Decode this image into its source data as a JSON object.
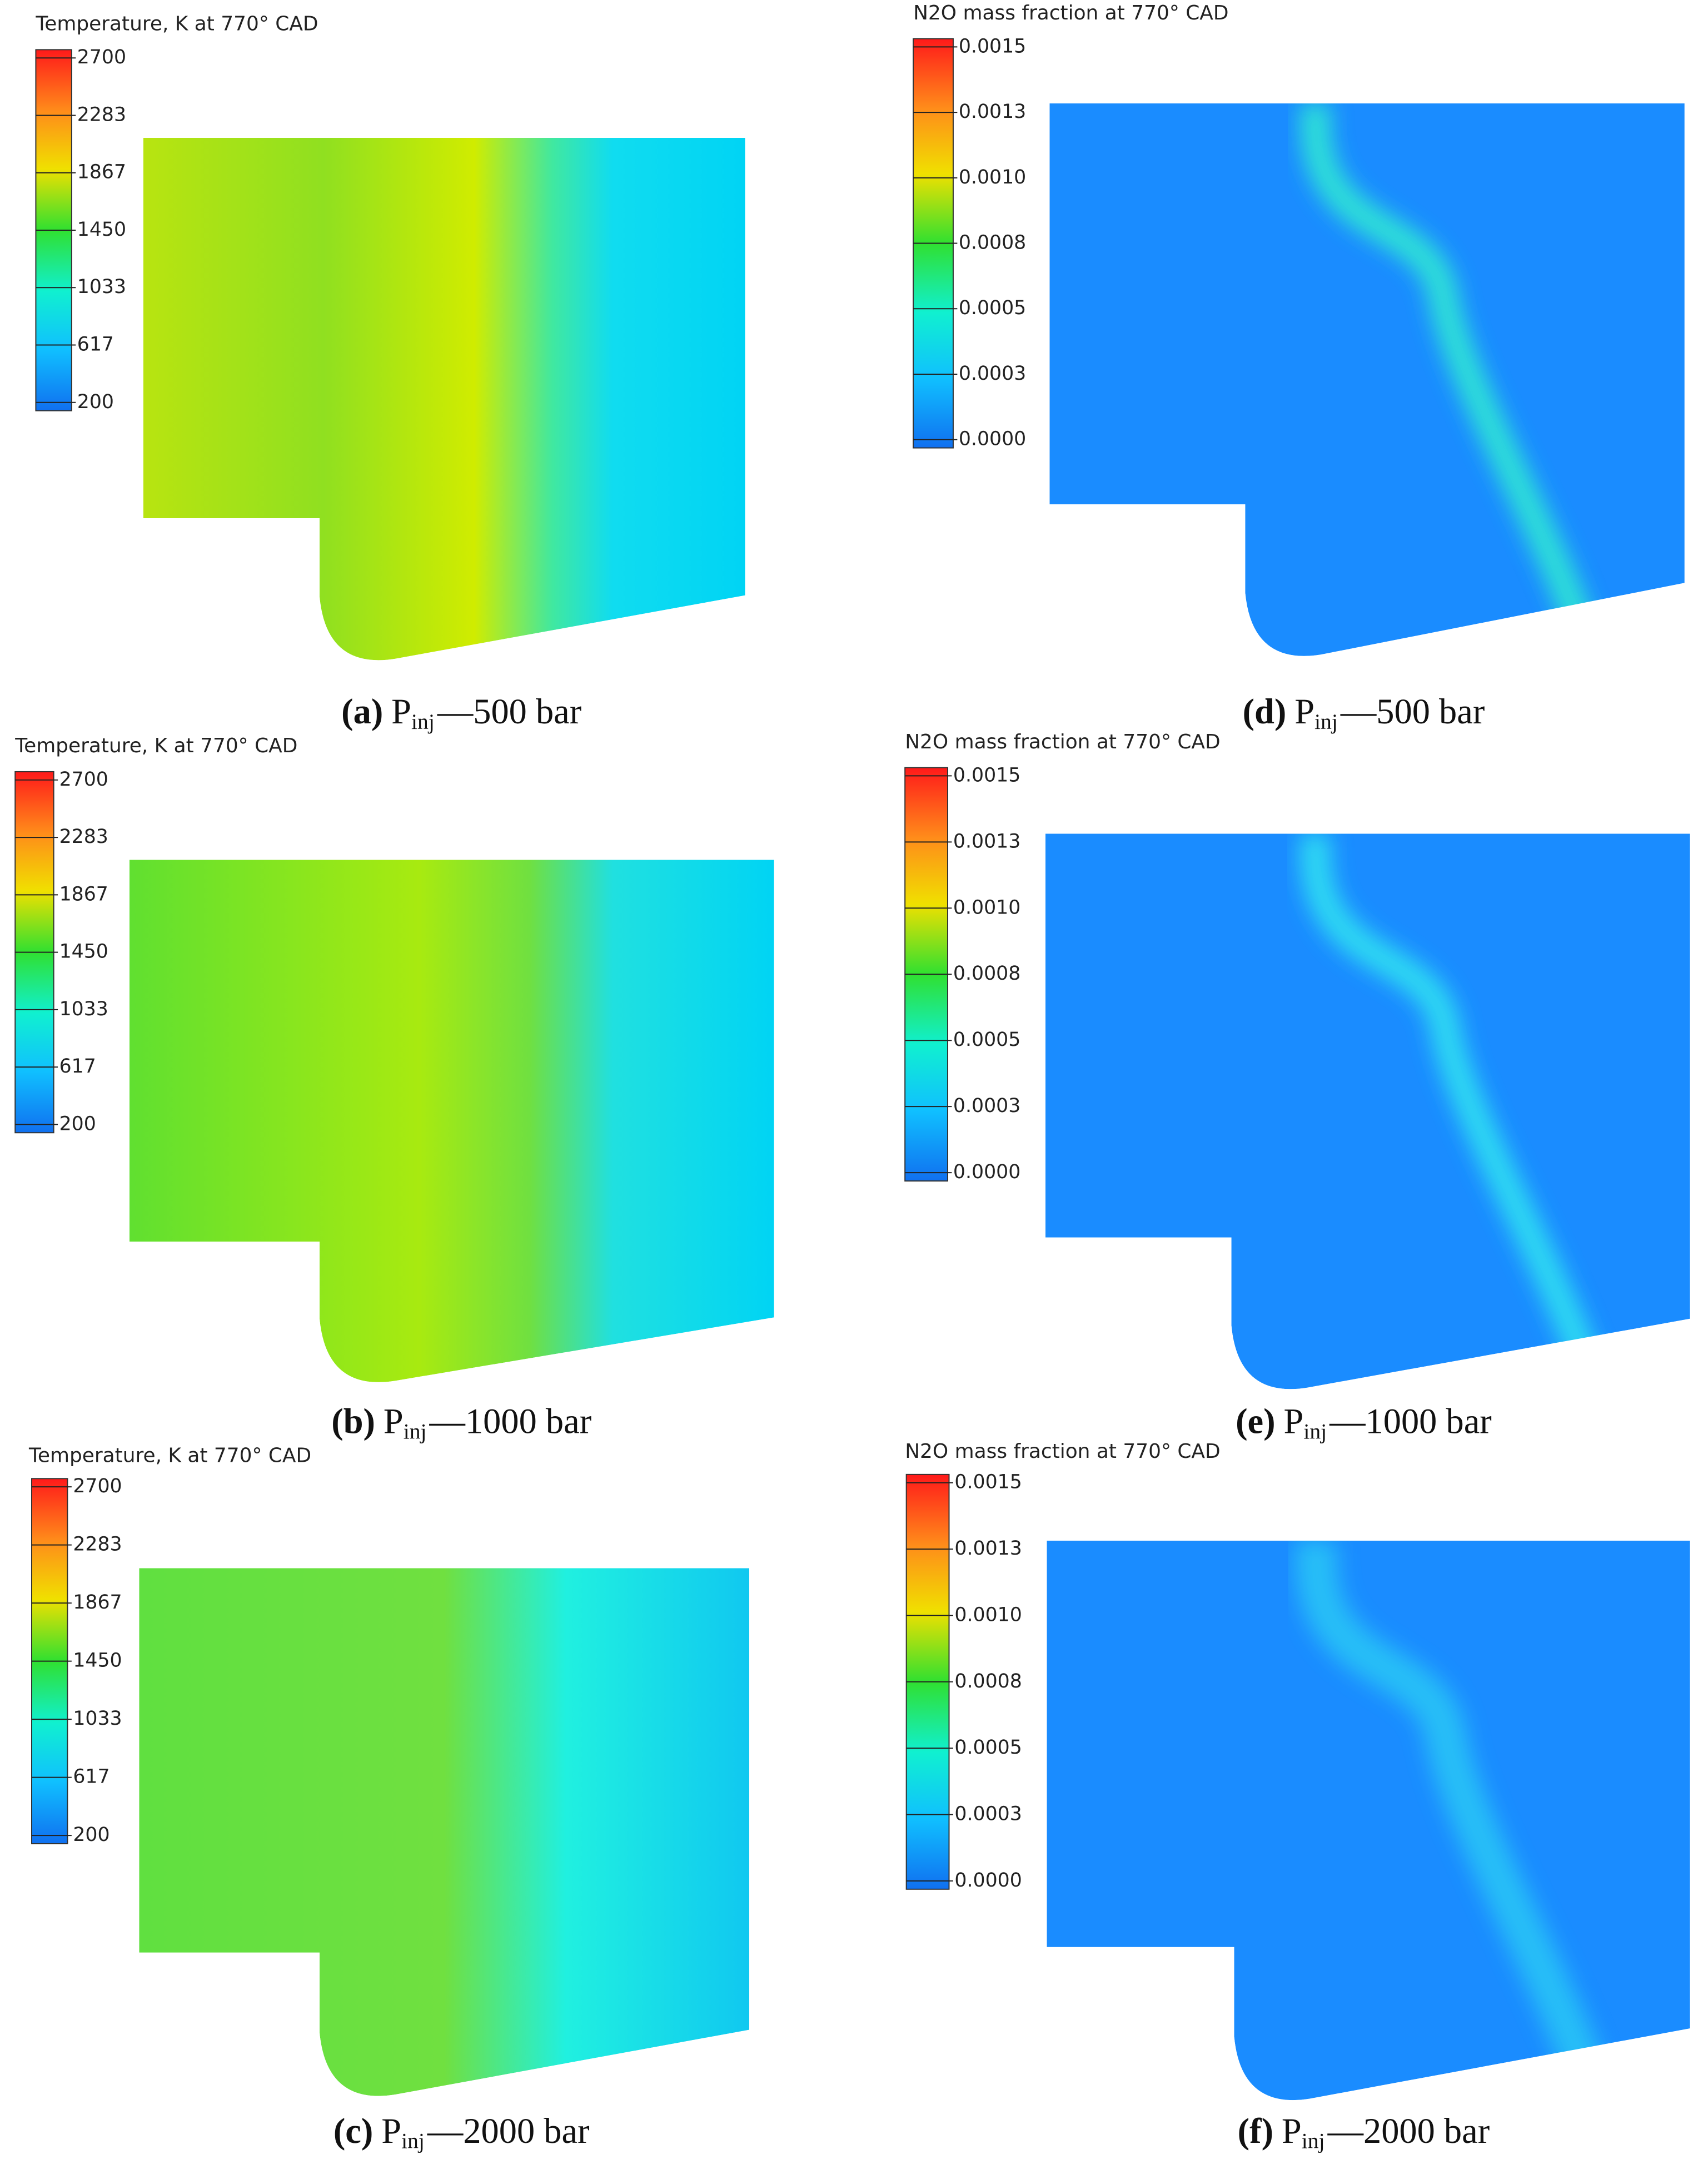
{
  "panels": [
    {
      "title": "Temperature, K at 770° CAD",
      "ticks": [
        "2700",
        "2283",
        "1867",
        "1450",
        "1033",
        "617",
        "200"
      ],
      "caption": {
        "label": "(a)",
        "symbol": "P",
        "subscript": "inj",
        "text": "—500 bar"
      }
    },
    {
      "title": "Temperature, K at 770° CAD",
      "ticks": [
        "2700",
        "2283",
        "1867",
        "1450",
        "1033",
        "617",
        "200"
      ],
      "caption": {
        "label": "(b)",
        "symbol": "P",
        "subscript": "inj",
        "text": "—1000 bar"
      }
    },
    {
      "title": "Temperature, K at 770° CAD",
      "ticks": [
        "2700",
        "2283",
        "1867",
        "1450",
        "1033",
        "617",
        "200"
      ],
      "caption": {
        "label": "(c)",
        "symbol": "P",
        "subscript": "inj",
        "text": "—2000 bar"
      }
    },
    {
      "title": "N2O mass fraction at 770° CAD",
      "ticks": [
        "0.0015",
        "0.0013",
        "0.0010",
        "0.0008",
        "0.0005",
        "0.0003",
        "0.0000"
      ],
      "caption": {
        "label": "(d)",
        "symbol": "P",
        "subscript": "inj",
        "text": "—500 bar"
      }
    },
    {
      "title": "N2O mass fraction at 770° CAD",
      "ticks": [
        "0.0015",
        "0.0013",
        "0.0010",
        "0.0008",
        "0.0005",
        "0.0003",
        "0.0000"
      ],
      "caption": {
        "label": "(e)",
        "symbol": "P",
        "subscript": "inj",
        "text": "—1000 bar"
      }
    },
    {
      "title": "N2O mass fraction at 770° CAD",
      "ticks": [
        "0.0015",
        "0.0013",
        "0.0010",
        "0.0008",
        "0.0005",
        "0.0003",
        "0.0000"
      ],
      "caption": {
        "label": "(f)",
        "symbol": "P",
        "subscript": "inj",
        "text": "—2000 bar"
      }
    }
  ]
}
